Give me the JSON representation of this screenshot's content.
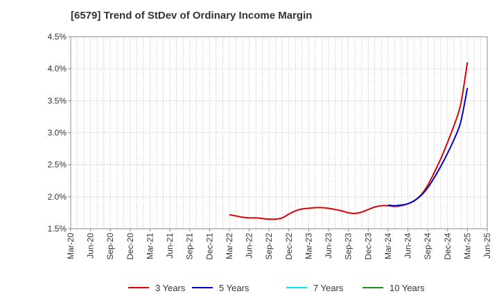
{
  "title": "[6579]  Trend of StDev of Ordinary Income Margin",
  "chart_data": {
    "type": "line",
    "title": "[6579]  Trend of StDev of Ordinary Income Margin",
    "xlabel": "",
    "ylabel": "",
    "x_ticks": [
      "Mar-20",
      "Jun-20",
      "Sep-20",
      "Dec-20",
      "Mar-21",
      "Jun-21",
      "Sep-21",
      "Dec-21",
      "Mar-22",
      "Jun-22",
      "Sep-22",
      "Dec-22",
      "Mar-23",
      "Jun-23",
      "Sep-23",
      "Dec-23",
      "Mar-24",
      "Jun-24",
      "Sep-24",
      "Dec-24",
      "Mar-25",
      "Jun-25"
    ],
    "y_ticks": [
      "1.5%",
      "2.0%",
      "2.5%",
      "3.0%",
      "3.5%",
      "4.0%",
      "4.5%"
    ],
    "ylim": [
      1.5,
      4.5
    ],
    "y_unit": "%",
    "grid": true,
    "legend_position": "bottom",
    "series": [
      {
        "name": "3 Years",
        "color": "#dd0000",
        "points": [
          [
            "Mar-22",
            1.72
          ],
          [
            "Apr-22",
            1.7
          ],
          [
            "May-22",
            1.68
          ],
          [
            "Jun-22",
            1.67
          ],
          [
            "Jul-22",
            1.67
          ],
          [
            "Aug-22",
            1.66
          ],
          [
            "Sep-22",
            1.65
          ],
          [
            "Oct-22",
            1.65
          ],
          [
            "Nov-22",
            1.67
          ],
          [
            "Dec-22",
            1.73
          ],
          [
            "Jan-23",
            1.78
          ],
          [
            "Feb-23",
            1.81
          ],
          [
            "Mar-23",
            1.82
          ],
          [
            "Apr-23",
            1.83
          ],
          [
            "May-23",
            1.83
          ],
          [
            "Jun-23",
            1.82
          ],
          [
            "Jul-23",
            1.8
          ],
          [
            "Aug-23",
            1.78
          ],
          [
            "Sep-23",
            1.75
          ],
          [
            "Oct-23",
            1.74
          ],
          [
            "Nov-23",
            1.76
          ],
          [
            "Dec-23",
            1.8
          ],
          [
            "Jan-24",
            1.84
          ],
          [
            "Feb-24",
            1.86
          ],
          [
            "Mar-24",
            1.86
          ],
          [
            "Apr-24",
            1.85
          ],
          [
            "May-24",
            1.86
          ],
          [
            "Jun-24",
            1.89
          ],
          [
            "Jul-24",
            1.94
          ],
          [
            "Aug-24",
            2.03
          ],
          [
            "Sep-24",
            2.18
          ],
          [
            "Oct-24",
            2.38
          ],
          [
            "Nov-24",
            2.6
          ],
          [
            "Dec-24",
            2.85
          ],
          [
            "Jan-25",
            3.12
          ],
          [
            "Feb-25",
            3.45
          ],
          [
            "Mar-25",
            4.1
          ]
        ]
      },
      {
        "name": "5 Years",
        "color": "#0000cc",
        "points": [
          [
            "Mar-24",
            1.87
          ],
          [
            "Apr-24",
            1.86
          ],
          [
            "May-24",
            1.87
          ],
          [
            "Jun-24",
            1.89
          ],
          [
            "Jul-24",
            1.94
          ],
          [
            "Aug-24",
            2.02
          ],
          [
            "Sep-24",
            2.14
          ],
          [
            "Oct-24",
            2.3
          ],
          [
            "Nov-24",
            2.48
          ],
          [
            "Dec-24",
            2.68
          ],
          [
            "Jan-25",
            2.9
          ],
          [
            "Feb-25",
            3.17
          ],
          [
            "Mar-25",
            3.7
          ]
        ]
      },
      {
        "name": "7 Years",
        "color": "#00e5ee",
        "points": []
      },
      {
        "name": "10 Years",
        "color": "#228b22",
        "points": []
      }
    ]
  }
}
